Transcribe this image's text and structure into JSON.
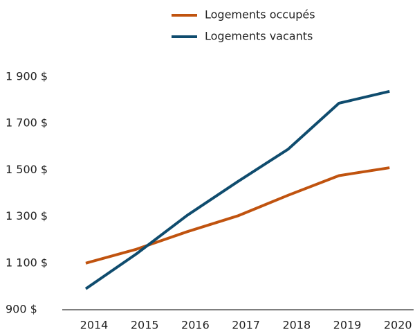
{
  "chart_data": {
    "type": "line",
    "x": [
      "2014",
      "2015",
      "2016",
      "2017",
      "2018",
      "2019",
      "2020"
    ],
    "series": [
      {
        "name": "Logements occupés",
        "color": "#c0530f",
        "values": [
          1100,
          1160,
          1235,
          1303,
          1392,
          1476,
          1510
        ]
      },
      {
        "name": "Logements vacants",
        "color": "#0f4c6e",
        "values": [
          990,
          1140,
          1305,
          1450,
          1590,
          1787,
          1838
        ]
      }
    ],
    "ylim": [
      900,
      1900
    ],
    "yticks": [
      {
        "value": 900,
        "label": "900 $"
      },
      {
        "value": 1100,
        "label": "1 100 $"
      },
      {
        "value": 1300,
        "label": "1 300 $"
      },
      {
        "value": 1500,
        "label": "1 500 $"
      },
      {
        "value": 1700,
        "label": "1 700 $"
      },
      {
        "value": 1900,
        "label": "1 900 $"
      }
    ],
    "grid": false,
    "legend": "top"
  }
}
